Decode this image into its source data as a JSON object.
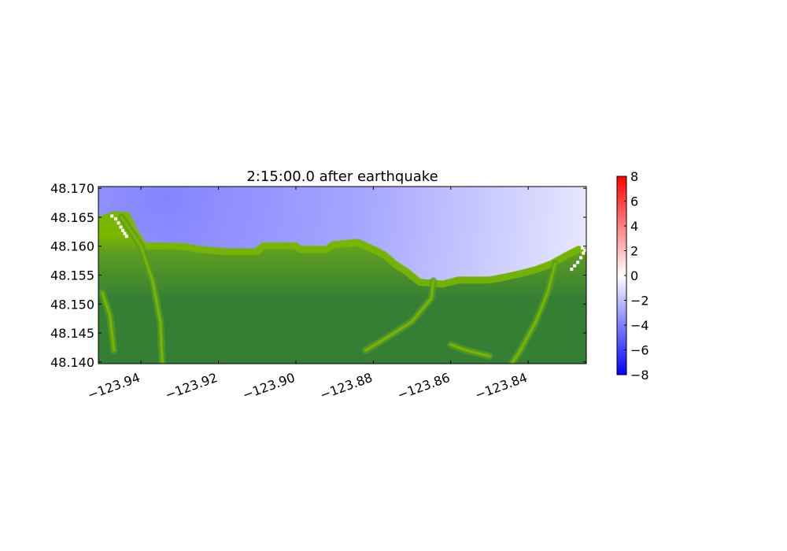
{
  "chart_data": {
    "type": "heatmap",
    "title": "2:15:00.0 after earthquake",
    "xlabel": "",
    "ylabel": "",
    "xlim": [
      -123.951,
      -123.825
    ],
    "ylim": [
      48.1397,
      48.1703
    ],
    "x_ticks": [
      -123.94,
      -123.92,
      -123.9,
      -123.88,
      -123.86,
      -123.84
    ],
    "x_tick_labels": [
      "−123.94",
      "−123.92",
      "−123.90",
      "−123.88",
      "−123.86",
      "−123.84"
    ],
    "y_ticks": [
      48.17,
      48.165,
      48.16,
      48.155,
      48.15,
      48.145,
      48.14
    ],
    "y_tick_labels": [
      "48.170",
      "48.165",
      "48.160",
      "48.155",
      "48.150",
      "48.145",
      "48.140"
    ],
    "colorbar": {
      "range": [
        -8,
        8
      ],
      "ticks": [
        8,
        6,
        4,
        2,
        0,
        -2,
        -4,
        -6,
        -8
      ],
      "tick_labels": [
        "8",
        "6",
        "4",
        "2",
        "0",
        "−2",
        "−4",
        "−6",
        "−8"
      ],
      "colors": [
        "#0000ff",
        "#ffffff",
        "#ff0000"
      ]
    },
    "colors": {
      "land_dark": "#357f35",
      "land_mid": "#5a9a22",
      "land_light": "#7ab700",
      "water_deep": "#8080ff",
      "water_shallow": "#e6e6ff"
    },
    "coastline": [
      [
        -123.951,
        48.165
      ],
      [
        -123.9468,
        48.166
      ],
      [
        -123.9435,
        48.1658
      ],
      [
        -123.9415,
        48.163
      ],
      [
        -123.9392,
        48.1606
      ],
      [
        -123.929,
        48.1605
      ],
      [
        -123.925,
        48.16
      ],
      [
        -123.918,
        48.1596
      ],
      [
        -123.91,
        48.1596
      ],
      [
        -123.9085,
        48.1606
      ],
      [
        -123.9,
        48.1606
      ],
      [
        -123.899,
        48.16
      ],
      [
        -123.892,
        48.16
      ],
      [
        -123.8905,
        48.1608
      ],
      [
        -123.884,
        48.1612
      ],
      [
        -123.88,
        48.16
      ],
      [
        -123.877,
        48.159
      ],
      [
        -123.8745,
        48.1575
      ],
      [
        -123.8715,
        48.1562
      ],
      [
        -123.868,
        48.1543
      ],
      [
        -123.862,
        48.154
      ],
      [
        -123.858,
        48.1547
      ],
      [
        -123.85,
        48.1547
      ],
      [
        -123.846,
        48.1552
      ],
      [
        -123.842,
        48.1558
      ],
      [
        -123.838,
        48.1565
      ],
      [
        -123.834,
        48.1575
      ],
      [
        -123.83,
        48.159
      ],
      [
        -123.827,
        48.16
      ],
      [
        -123.825,
        48.1596
      ]
    ],
    "streams": [
      [
        [
          -123.945,
          48.165
        ],
        [
          -123.94,
          48.16
        ],
        [
          -123.937,
          48.154
        ],
        [
          -123.935,
          48.147
        ],
        [
          -123.9345,
          48.14
        ]
      ],
      [
        [
          -123.95,
          48.152
        ],
        [
          -123.948,
          48.148
        ],
        [
          -123.947,
          48.142
        ]
      ],
      [
        [
          -123.8645,
          48.154
        ],
        [
          -123.865,
          48.151
        ],
        [
          -123.87,
          48.147
        ],
        [
          -123.877,
          48.144
        ],
        [
          -123.882,
          48.142
        ]
      ],
      [
        [
          -123.86,
          48.143
        ],
        [
          -123.856,
          48.142
        ],
        [
          -123.85,
          48.141
        ]
      ],
      [
        [
          -123.833,
          48.157
        ],
        [
          -123.835,
          48.152
        ],
        [
          -123.838,
          48.147
        ],
        [
          -123.842,
          48.142
        ],
        [
          -123.844,
          48.14
        ]
      ]
    ],
    "dry_cells": [
      [
        -123.9475,
        48.1652
      ],
      [
        -123.9465,
        48.1647
      ],
      [
        -123.9458,
        48.164
      ],
      [
        -123.9452,
        48.1633
      ],
      [
        -123.9447,
        48.1627
      ],
      [
        -123.9442,
        48.1622
      ],
      [
        -123.9437,
        48.1617
      ],
      [
        -123.8288,
        48.156
      ],
      [
        -123.828,
        48.1566
      ],
      [
        -123.8272,
        48.1572
      ],
      [
        -123.8264,
        48.158
      ],
      [
        -123.8258,
        48.1588
      ],
      [
        -123.8253,
        48.1593
      ],
      [
        -123.826,
        48.1597
      ]
    ]
  }
}
